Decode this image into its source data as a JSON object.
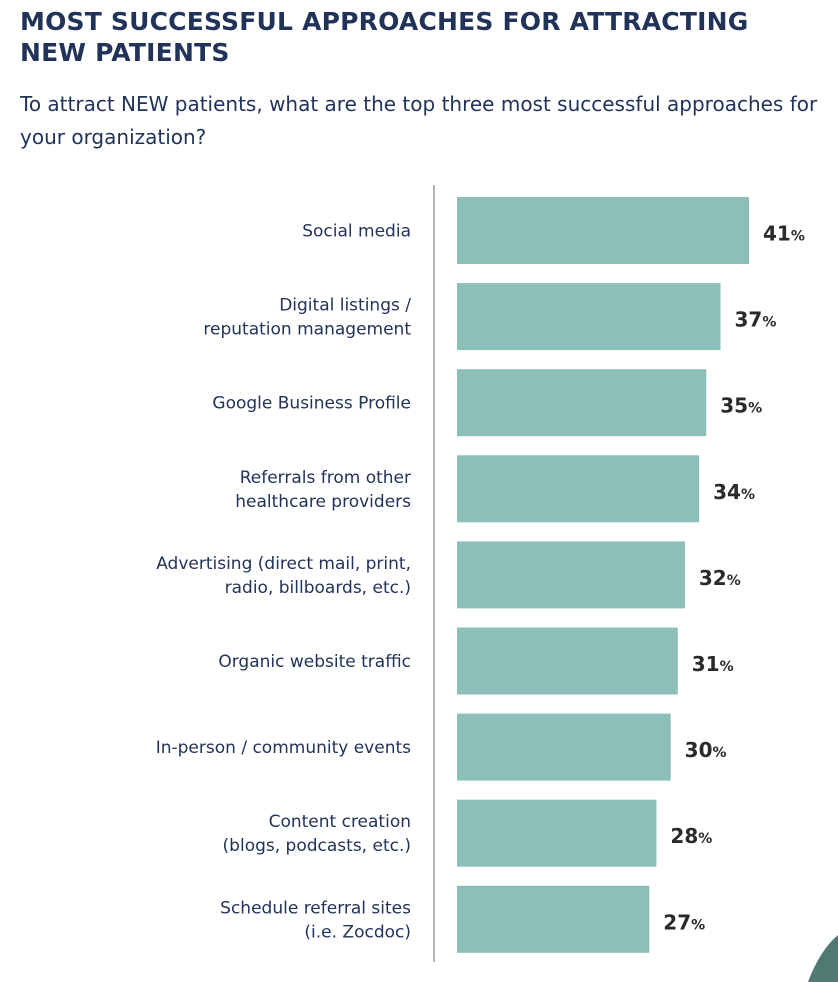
{
  "header": {
    "title": "MOST SUCCESSFUL APPROACHES FOR ATTRACTING NEW PATIENTS",
    "subtitle": "To attract NEW patients, what are the top three most successful approaches for your organization?"
  },
  "colors": {
    "bar": "#8bbfb7",
    "title": "#22335a",
    "value": "#2a2a2a",
    "decoration": "#4e7a72"
  },
  "chart_data": {
    "type": "bar",
    "orientation": "horizontal",
    "title": "MOST SUCCESSFUL APPROACHES FOR ATTRACTING NEW PATIENTS",
    "subtitle": "To attract NEW patients, what are the top three most successful approaches for your organization?",
    "categories": [
      [
        "Social media"
      ],
      [
        "Digital listings /",
        "reputation management"
      ],
      [
        "Google Business Profile"
      ],
      [
        "Referrals from other",
        "healthcare providers"
      ],
      [
        "Advertising (direct mail, print,",
        "radio, billboards, etc.)"
      ],
      [
        "Organic website traffic"
      ],
      [
        "In-person / community events"
      ],
      [
        "Content creation",
        "(blogs, podcasts, etc.)"
      ],
      [
        "Schedule referral sites",
        "(i.e. Zocdoc)"
      ]
    ],
    "values": [
      41,
      37,
      35,
      34,
      32,
      31,
      30,
      28,
      27
    ],
    "unit": "%",
    "grid": false,
    "legend": "none"
  }
}
